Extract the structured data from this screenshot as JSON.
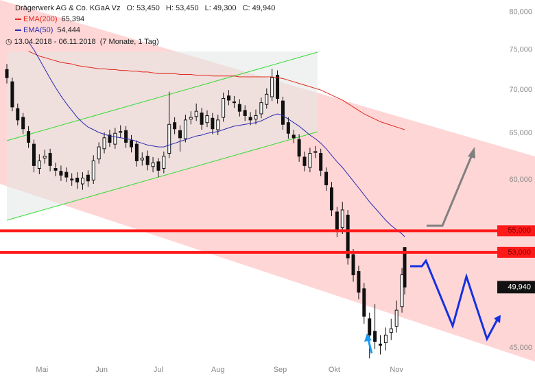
{
  "chart_data": {
    "type": "candlestick",
    "title": "Drägerwerk AG & Co. KGaA Vz",
    "ohlc_texts": [
      "O: 53,450",
      "H: 53,450",
      "L: 49,300",
      "C: 49,940"
    ],
    "period": "13.04.2018 - 06.11.2018",
    "period_note": "(7 Monate, 1 Tag)",
    "x": [
      "2018-04-13",
      "2018-04-17",
      "2018-04-19",
      "2018-04-23",
      "2018-04-25",
      "2018-04-27",
      "2018-05-01",
      "2018-05-03",
      "2018-05-07",
      "2018-05-09",
      "2018-05-11",
      "2018-05-15",
      "2018-05-17",
      "2018-05-21",
      "2018-05-23",
      "2018-05-25",
      "2018-05-29",
      "2018-05-31",
      "2018-06-04",
      "2018-06-06",
      "2018-06-08",
      "2018-06-12",
      "2018-06-14",
      "2018-06-18",
      "2018-06-20",
      "2018-06-22",
      "2018-06-26",
      "2018-06-28",
      "2018-07-02",
      "2018-07-04",
      "2018-07-06",
      "2018-07-10",
      "2018-07-12",
      "2018-07-16",
      "2018-07-18",
      "2018-07-20",
      "2018-07-24",
      "2018-07-26",
      "2018-07-30",
      "2018-08-01",
      "2018-08-03",
      "2018-08-07",
      "2018-08-09",
      "2018-08-13",
      "2018-08-15",
      "2018-08-17",
      "2018-08-21",
      "2018-08-23",
      "2018-08-27",
      "2018-08-29",
      "2018-08-31",
      "2018-09-04",
      "2018-09-06",
      "2018-09-10",
      "2018-09-12",
      "2018-09-14",
      "2018-09-18",
      "2018-09-20",
      "2018-09-24",
      "2018-09-26",
      "2018-09-28",
      "2018-10-02",
      "2018-10-04",
      "2018-10-08",
      "2018-10-10",
      "2018-10-12",
      "2018-10-16",
      "2018-10-18",
      "2018-10-22",
      "2018-10-24",
      "2018-10-26",
      "2018-10-30",
      "2018-11-01",
      "2018-11-05",
      "2018-11-06"
    ],
    "open": [
      72500,
      71000,
      67800,
      66800,
      65200,
      63800,
      61200,
      62300,
      62800,
      61200,
      60900,
      60800,
      60100,
      60200,
      59600,
      60500,
      60000,
      62200,
      63300,
      64800,
      63800,
      65100,
      65300,
      64200,
      63800,
      62100,
      62500,
      61400,
      61900,
      61200,
      62800,
      66200,
      65300,
      64400,
      66600,
      66900,
      67300,
      66200,
      66700,
      65400,
      66800,
      69300,
      68600,
      68300,
      67600,
      66800,
      66600,
      67200,
      68300,
      69200,
      71800,
      68700,
      66200,
      64800,
      64300,
      62400,
      61300,
      62900,
      62800,
      60800,
      59200,
      56800,
      55300,
      56500,
      52800,
      51300,
      49800,
      47300,
      46300,
      45300,
      45400,
      46200,
      46700,
      48300,
      53450
    ],
    "high": [
      73200,
      71500,
      68400,
      67300,
      65800,
      64300,
      62700,
      63200,
      63300,
      61800,
      61500,
      61300,
      60700,
      60800,
      60800,
      61000,
      62600,
      64000,
      65100,
      65400,
      65600,
      65900,
      65800,
      64800,
      64200,
      62900,
      63100,
      62400,
      62300,
      63000,
      69800,
      66800,
      65900,
      67100,
      67500,
      68400,
      67900,
      67600,
      67300,
      67100,
      69700,
      70000,
      69300,
      68900,
      68200,
      67400,
      67700,
      69100,
      70200,
      72600,
      72400,
      69200,
      66800,
      65400,
      64900,
      63000,
      63400,
      63600,
      63300,
      61300,
      59800,
      57300,
      57800,
      57000,
      53300,
      51800,
      50300,
      47800,
      48500,
      46000,
      46600,
      47300,
      48800,
      51600,
      53450
    ],
    "low": [
      70800,
      67500,
      65900,
      64900,
      63400,
      60800,
      60600,
      61700,
      60900,
      60400,
      59900,
      59800,
      59400,
      59100,
      59000,
      59300,
      59600,
      61700,
      62800,
      63500,
      63300,
      64500,
      63400,
      62900,
      61400,
      61500,
      61000,
      60800,
      60300,
      60700,
      62300,
      64900,
      63000,
      64000,
      66000,
      66400,
      65400,
      65700,
      64900,
      64800,
      66300,
      68200,
      67900,
      66900,
      66400,
      65900,
      66000,
      66700,
      67800,
      68700,
      68400,
      65400,
      64400,
      63900,
      61900,
      60900,
      60800,
      62300,
      60400,
      58900,
      56400,
      54400,
      54700,
      51900,
      50400,
      48900,
      46900,
      44200,
      44900,
      44500,
      44800,
      45600,
      46200,
      47800,
      49300
    ],
    "close": [
      71500,
      68000,
      66500,
      65500,
      64000,
      61500,
      62000,
      62500,
      61500,
      61000,
      60500,
      60300,
      60000,
      59800,
      60200,
      59900,
      62000,
      63500,
      64500,
      64000,
      65000,
      65200,
      64000,
      63500,
      62000,
      62300,
      61600,
      61800,
      61000,
      62500,
      66000,
      65500,
      64500,
      66500,
      66800,
      67500,
      66000,
      67000,
      65500,
      66500,
      69000,
      68800,
      68500,
      67500,
      67000,
      66500,
      67000,
      68500,
      69500,
      71500,
      69000,
      66000,
      65000,
      64500,
      62500,
      61500,
      62800,
      63000,
      61000,
      59500,
      57000,
      55000,
      57000,
      52500,
      51000,
      49500,
      47500,
      46000,
      45500,
      45200,
      46000,
      46500,
      48000,
      51000,
      49940
    ],
    "candle_color": "#111111",
    "series": [
      {
        "name": "EMA(200)",
        "color": "#e3281c",
        "last_label": "65,394",
        "values": [
          null,
          null,
          null,
          null,
          74800,
          74500,
          74200,
          74000,
          73800,
          73600,
          73400,
          73300,
          73200,
          73000,
          72900,
          72800,
          72700,
          72600,
          72600,
          72500,
          72500,
          72400,
          72400,
          72300,
          72300,
          72200,
          72200,
          72100,
          72000,
          72000,
          72000,
          72000,
          71900,
          71900,
          71900,
          71800,
          71800,
          71800,
          71700,
          71700,
          71700,
          71700,
          71700,
          71600,
          71600,
          71600,
          71600,
          71600,
          71600,
          71600,
          71500,
          71400,
          71200,
          71000,
          70800,
          70600,
          70400,
          70200,
          70000,
          69700,
          69400,
          69100,
          68800,
          68400,
          68000,
          67600,
          67200,
          66900,
          66600,
          66300,
          66100,
          65900,
          65700,
          65500,
          65394
        ]
      },
      {
        "name": "EMA(50)",
        "color": "#2a2ab0",
        "last_label": "54,444",
        "values": [
          null,
          null,
          null,
          null,
          76000,
          75000,
          73800,
          72600,
          71400,
          70300,
          69300,
          68400,
          67600,
          66800,
          66200,
          65700,
          65400,
          65100,
          64900,
          64700,
          64600,
          64500,
          64400,
          64300,
          64100,
          63900,
          63700,
          63600,
          63500,
          63500,
          63700,
          63900,
          64100,
          64300,
          64500,
          64700,
          64800,
          65000,
          65100,
          65200,
          65400,
          65600,
          65800,
          65900,
          66000,
          66100,
          66200,
          66400,
          66700,
          67000,
          67200,
          67000,
          66600,
          66200,
          65800,
          65300,
          64800,
          64400,
          63900,
          63300,
          62600,
          61900,
          61300,
          60600,
          59900,
          59200,
          58500,
          57800,
          57200,
          56600,
          56000,
          55500,
          55100,
          54700,
          54444
        ]
      }
    ],
    "levels": [
      {
        "value": 55000,
        "label": "55,000"
      },
      {
        "value": 53000,
        "label": "53,000"
      }
    ],
    "level_color": "#ff1a1a",
    "last_price": {
      "value": 49940,
      "label": "49,940"
    },
    "log_scale": true,
    "ylim": [
      43800,
      81200
    ],
    "yticks": [
      {
        "value": 45000,
        "label": "45,000"
      },
      {
        "value": 50000,
        "label": "50,000"
      },
      {
        "value": 55000,
        "label": "55,000"
      },
      {
        "value": 60000,
        "label": "60,000"
      },
      {
        "value": 65000,
        "label": "65,000"
      },
      {
        "value": 70000,
        "label": "70,000"
      },
      {
        "value": 75000,
        "label": "75,000"
      },
      {
        "value": 80000,
        "label": "80,000"
      }
    ],
    "xticks": [
      {
        "value": "2018-05-02",
        "label": "Mai"
      },
      {
        "value": "2018-06-01",
        "label": "Jun"
      },
      {
        "value": "2018-07-02",
        "label": "Jul"
      },
      {
        "value": "2018-08-01",
        "label": "Aug"
      },
      {
        "value": "2018-09-03",
        "label": "Sep"
      },
      {
        "value": "2018-10-01",
        "label": "Okt"
      },
      {
        "value": "2018-11-01",
        "label": "Nov"
      }
    ],
    "grid": false
  }
}
